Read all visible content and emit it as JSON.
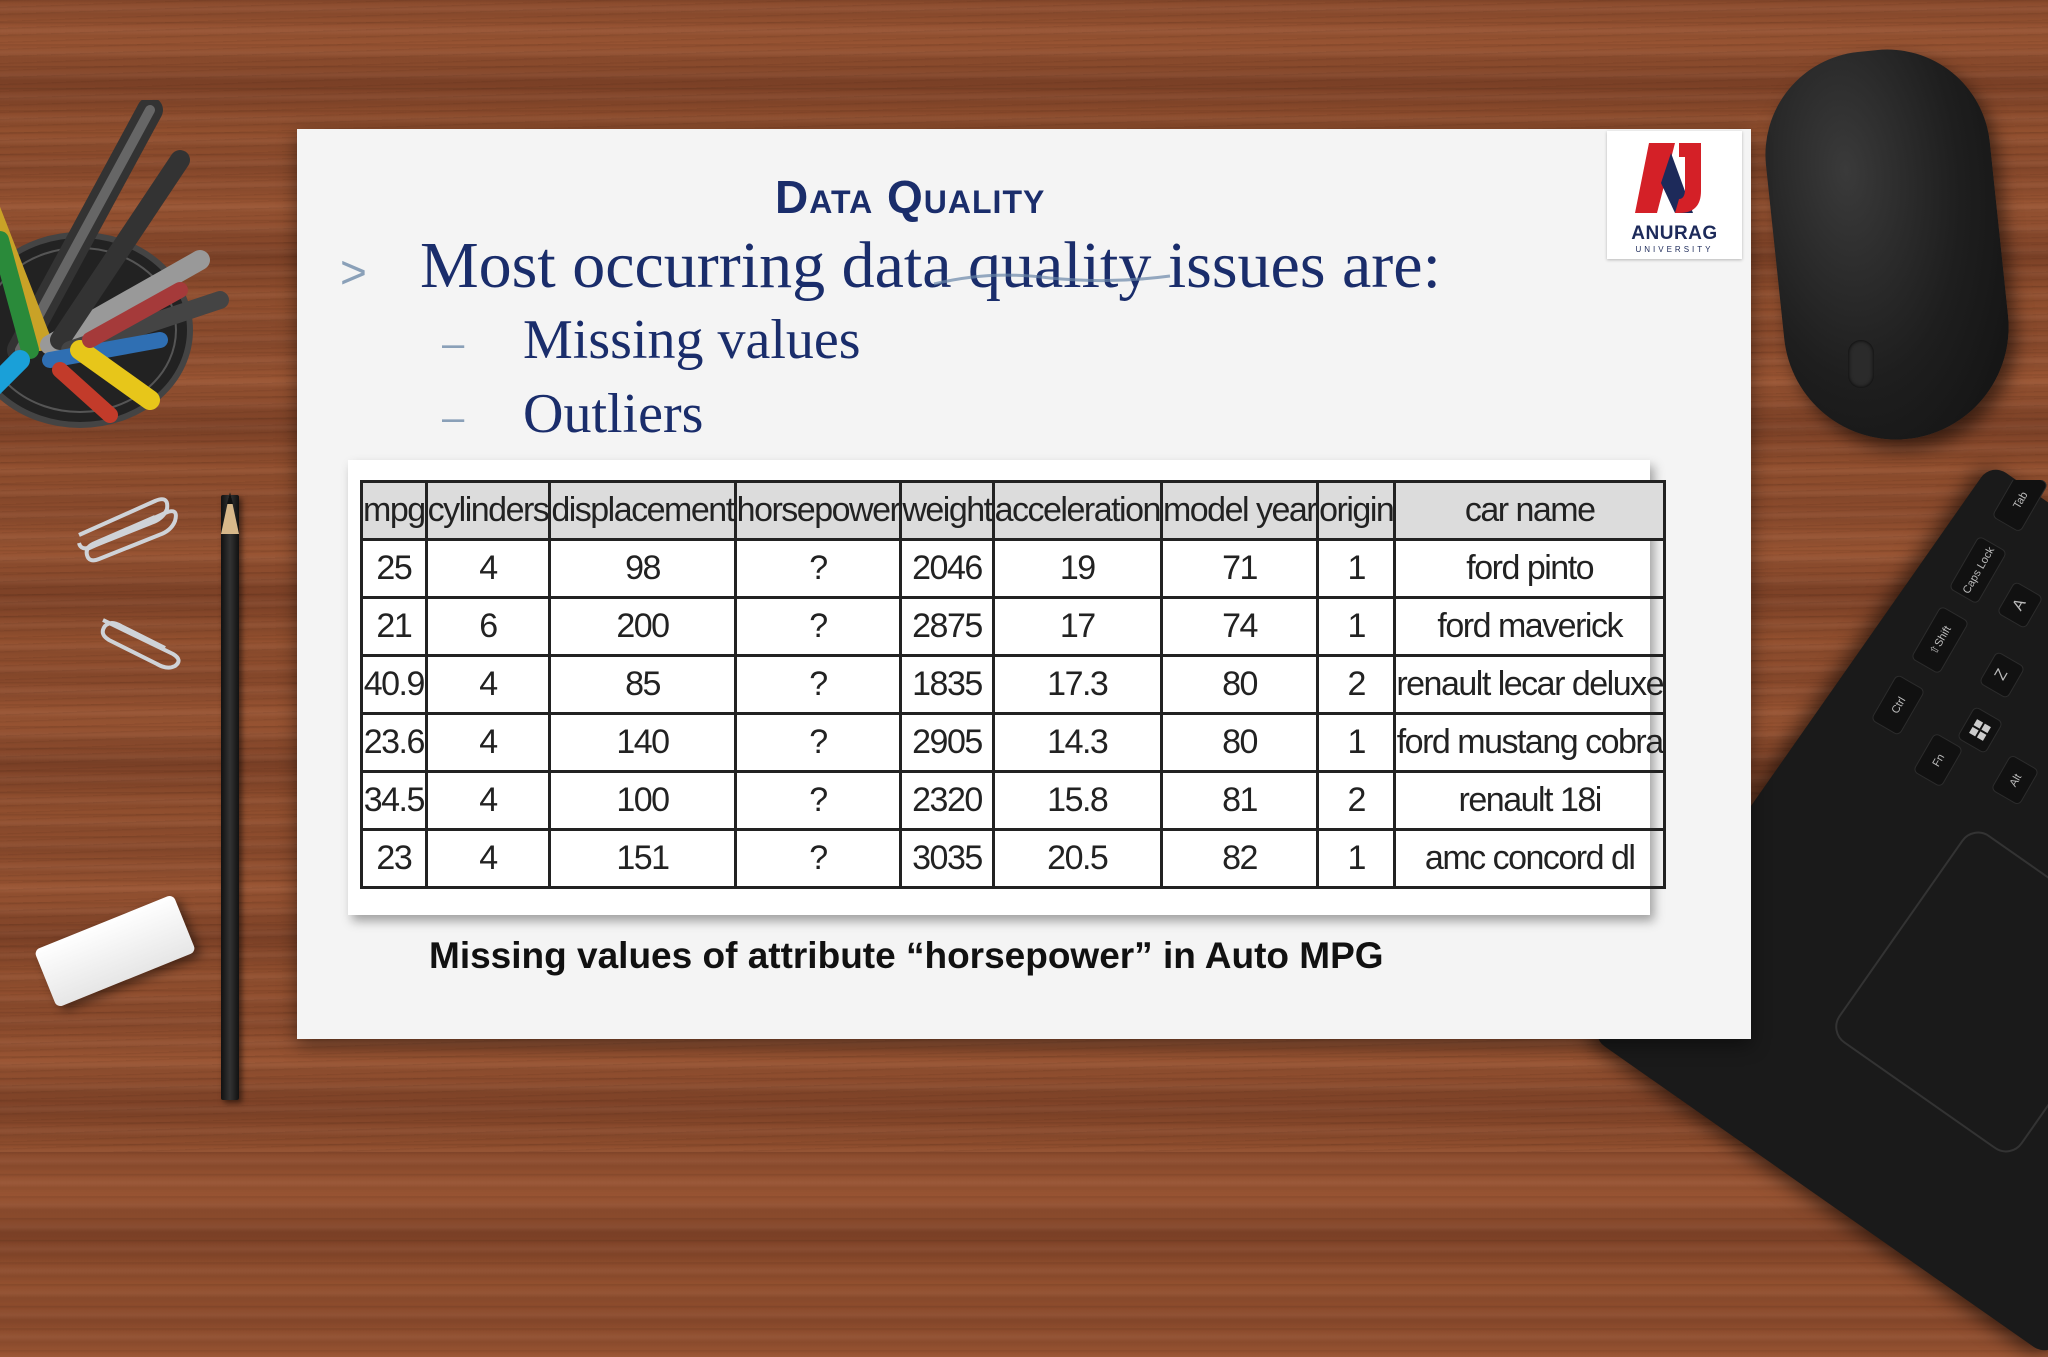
{
  "slide": {
    "title": "Data Quality",
    "bullet_marker": ">",
    "main_bullet": "Most occurring data quality issues are:",
    "sub_marker": "–",
    "sub_bullets": [
      "Missing values",
      "Outliers"
    ],
    "caption": "Missing values of attribute “horsepower” in Auto MPG"
  },
  "logo": {
    "name": "ANURAG",
    "subtitle": "UNIVERSITY",
    "colors": {
      "red": "#d42027",
      "navy": "#1d2a5a"
    }
  },
  "table": {
    "headers": [
      "mpg",
      "cylinders",
      "displacement",
      "horsepower",
      "weight",
      "acceleration",
      "model year",
      "origin",
      "car name"
    ],
    "rows": [
      [
        "25",
        "4",
        "98",
        "?",
        "2046",
        "19",
        "71",
        "1",
        "ford pinto"
      ],
      [
        "21",
        "6",
        "200",
        "?",
        "2875",
        "17",
        "74",
        "1",
        "ford maverick"
      ],
      [
        "40.9",
        "4",
        "85",
        "?",
        "1835",
        "17.3",
        "80",
        "2",
        "renault lecar deluxe"
      ],
      [
        "23.6",
        "4",
        "140",
        "?",
        "2905",
        "14.3",
        "80",
        "1",
        "ford mustang cobra"
      ],
      [
        "34.5",
        "4",
        "100",
        "?",
        "2320",
        "15.8",
        "81",
        "2",
        "renault 18i"
      ],
      [
        "23",
        "4",
        "151",
        "?",
        "3035",
        "20.5",
        "82",
        "1",
        "amc concord dl"
      ]
    ]
  },
  "colors": {
    "title_text": "#1a2d6b",
    "bullet_marker": "#8aa0b8",
    "header_fill": "#dcdcdc",
    "desk_wood": "#8a4a2c"
  },
  "keyboard_labels": [
    "Tab",
    "Caps Lock",
    "⇧Shift",
    "Ctrl",
    "Fn",
    "A",
    "Z",
    "Alt"
  ]
}
